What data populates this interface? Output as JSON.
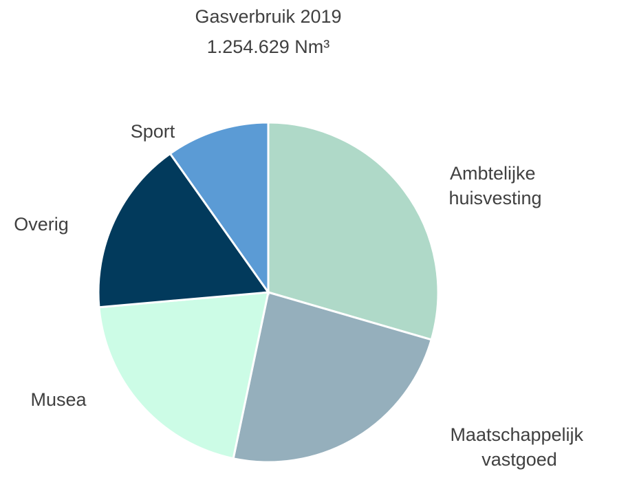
{
  "chart_data": {
    "type": "pie",
    "title": "Gasverbruik 2019",
    "subtitle": "1.254.629 Nm³",
    "categories": [
      "Ambtelijke huisvesting",
      "Maatschappelijk vastgoed",
      "Musea",
      "Overig",
      "Sport"
    ],
    "values": [
      29.5,
      23.8,
      20.3,
      16.6,
      9.8
    ],
    "colors": [
      "#afd9c8",
      "#95afbc",
      "#ccfce6",
      "#023a5c",
      "#5b9bd5"
    ]
  }
}
